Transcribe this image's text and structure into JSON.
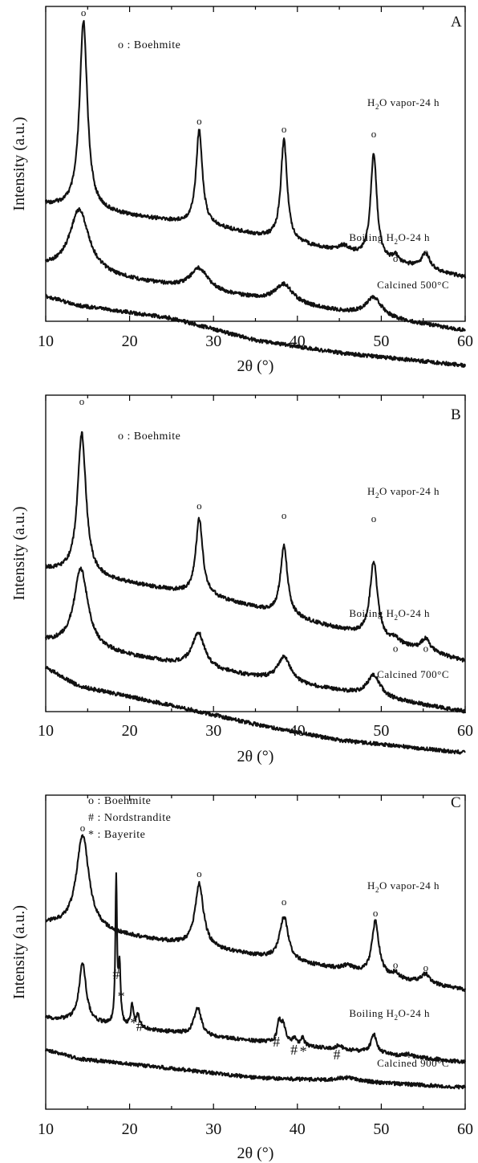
{
  "chart_data": [
    {
      "type": "line",
      "panel": "A",
      "xlabel": "2θ (°)",
      "ylabel": "Intensity (a.u.)",
      "xlim": [
        10,
        60
      ],
      "xticks": [
        10,
        20,
        30,
        40,
        50,
        60
      ],
      "legend": [
        {
          "symbol": "o",
          "text": ": Boehmite"
        }
      ],
      "series": [
        {
          "name": "H2O vapor-24 h",
          "label_main": "H",
          "label_sub": "2",
          "label_rest": "O vapor-24 h",
          "baseline": [
            [
              10,
              0.63
            ],
            [
              30,
              0.7
            ],
            [
              60,
              0.86
            ]
          ],
          "peaks": [
            [
              14.5,
              0.6,
              0.55
            ],
            [
              28.3,
              0.3,
              0.45
            ],
            [
              38.4,
              0.32,
              0.45
            ],
            [
              49.1,
              0.33,
              0.45
            ],
            [
              51.7,
              0.02,
              0.4
            ],
            [
              55.3,
              0.05,
              0.6
            ],
            [
              45.5,
              0.02,
              0.8
            ]
          ],
          "markers": [
            {
              "x": 14.5,
              "y": 0.0,
              "symbol": "o"
            },
            {
              "x": 28.3,
              "y": 0.345,
              "symbol": "o"
            },
            {
              "x": 38.4,
              "y": 0.37,
              "symbol": "o"
            },
            {
              "x": 49.1,
              "y": 0.385,
              "symbol": "o"
            },
            {
              "x": 51.7,
              "y": 0.78,
              "symbol": "o"
            },
            {
              "x": 55.3,
              "y": 0.76,
              "symbol": "o"
            }
          ]
        },
        {
          "name": "Boiling H2O-24 h",
          "label_main": "Boiling H",
          "label_sub": "2",
          "label_rest": "O-24 h",
          "baseline": [
            [
              10,
              0.83
            ],
            [
              30,
              0.91
            ],
            [
              60,
              1.03
            ]
          ],
          "peaks": [
            [
              14.0,
              0.2,
              1.4
            ],
            [
              28.3,
              0.07,
              1.3
            ],
            [
              38.4,
              0.06,
              1.3
            ],
            [
              49.1,
              0.06,
              1.2
            ]
          ],
          "markers": []
        },
        {
          "name": "Calcined 500°C",
          "label_main": "Calcined 500°C",
          "label_sub": "",
          "label_rest": "",
          "baseline": [
            [
              10,
              0.92
            ],
            [
              14,
              0.95
            ],
            [
              25,
              0.99
            ],
            [
              35,
              1.06
            ],
            [
              45,
              1.1
            ],
            [
              60,
              1.14
            ]
          ],
          "peaks": [],
          "markers": []
        }
      ]
    },
    {
      "type": "line",
      "panel": "B",
      "xlabel": "2θ (°)",
      "ylabel": "Intensity (a.u.)",
      "xlim": [
        10,
        60
      ],
      "xticks": [
        10,
        20,
        30,
        40,
        50,
        60
      ],
      "legend": [
        {
          "symbol": "o",
          "text": ": Boehmite"
        }
      ],
      "series": [
        {
          "name": "H2O vapor-24 h",
          "label_main": "H",
          "label_sub": "2",
          "label_rest": "O vapor-24 h",
          "baseline": [
            [
              10,
              0.55
            ],
            [
              30,
              0.64
            ],
            [
              60,
              0.84
            ]
          ],
          "peaks": [
            [
              14.3,
              0.45,
              0.6
            ],
            [
              28.3,
              0.24,
              0.5
            ],
            [
              38.4,
              0.22,
              0.5
            ],
            [
              49.1,
              0.24,
              0.55
            ],
            [
              51.7,
              0.015,
              0.4
            ],
            [
              55.3,
              0.04,
              0.6
            ]
          ],
          "markers": [
            {
              "x": 14.3,
              "y": 0.0,
              "symbol": "o"
            },
            {
              "x": 28.3,
              "y": 0.33,
              "symbol": "o"
            },
            {
              "x": 38.4,
              "y": 0.36,
              "symbol": "o"
            },
            {
              "x": 49.1,
              "y": 0.37,
              "symbol": "o"
            },
            {
              "x": 51.7,
              "y": 0.78,
              "symbol": "o"
            },
            {
              "x": 55.3,
              "y": 0.78,
              "symbol": "o"
            }
          ]
        },
        {
          "name": "Boiling H2O-24 h",
          "label_main": "Boiling H",
          "label_sub": "2",
          "label_rest": "O-24 h",
          "baseline": [
            [
              10,
              0.78
            ],
            [
              30,
              0.87
            ],
            [
              60,
              1.0
            ]
          ],
          "peaks": [
            [
              14.2,
              0.25,
              1.0
            ],
            [
              28.2,
              0.11,
              0.9
            ],
            [
              38.4,
              0.08,
              0.9
            ],
            [
              49.1,
              0.07,
              0.9
            ]
          ],
          "markers": []
        },
        {
          "name": "Calcined 700°C",
          "label_main": "Calcined 700°C",
          "label_sub": "",
          "label_rest": "",
          "baseline": [
            [
              10,
              0.86
            ],
            [
              14,
              0.92
            ],
            [
              25,
              0.98
            ],
            [
              35,
              1.04
            ],
            [
              45,
              1.09
            ],
            [
              60,
              1.13
            ]
          ],
          "peaks": [],
          "markers": []
        }
      ]
    },
    {
      "type": "line",
      "panel": "C",
      "xlabel": "2θ (°)",
      "ylabel": "Intensity (a.u.)",
      "xlim": [
        10,
        60
      ],
      "xticks": [
        10,
        20,
        30,
        40,
        50,
        60
      ],
      "legend": [
        {
          "symbol": "o",
          "text": ": Boehmite"
        },
        {
          "symbol": "#",
          "text": ": Nordstrandite"
        },
        {
          "symbol": "*",
          "text": ": Bayerite"
        }
      ],
      "series": [
        {
          "name": "H2O vapor-24 h",
          "label_main": "H",
          "label_sub": "2",
          "label_rest": "O vapor-24 h",
          "baseline": [
            [
              10,
              0.41
            ],
            [
              30,
              0.49
            ],
            [
              60,
              0.62
            ]
          ],
          "peaks": [
            [
              14.4,
              0.3,
              0.9
            ],
            [
              28.3,
              0.2,
              0.6
            ],
            [
              38.4,
              0.14,
              0.6
            ],
            [
              49.3,
              0.17,
              0.5
            ],
            [
              51.7,
              0.015,
              0.4
            ],
            [
              55.3,
              0.03,
              0.6
            ],
            [
              46.0,
              0.015,
              0.8
            ]
          ],
          "markers": [
            {
              "x": 14.4,
              "y": 0.085,
              "symbol": "o"
            },
            {
              "x": 28.3,
              "y": 0.23,
              "symbol": "o"
            },
            {
              "x": 38.4,
              "y": 0.32,
              "symbol": "o"
            },
            {
              "x": 49.3,
              "y": 0.355,
              "symbol": "o"
            },
            {
              "x": 51.7,
              "y": 0.52,
              "symbol": "o"
            },
            {
              "x": 55.3,
              "y": 0.53,
              "symbol": "o"
            }
          ]
        },
        {
          "name": "Boiling H2O-24 h",
          "label_main": "Boiling H",
          "label_sub": "2",
          "label_rest": "O-24 h",
          "baseline": [
            [
              10,
              0.71
            ],
            [
              30,
              0.77
            ],
            [
              60,
              0.85
            ]
          ],
          "peaks": [
            [
              14.4,
              0.19,
              0.5
            ],
            [
              18.4,
              0.46,
              0.12
            ],
            [
              18.8,
              0.18,
              0.15
            ],
            [
              20.3,
              0.07,
              0.2
            ],
            [
              21.0,
              0.04,
              0.2
            ],
            [
              28.1,
              0.09,
              0.5
            ],
            [
              37.8,
              0.06,
              0.25
            ],
            [
              38.3,
              0.06,
              0.35
            ],
            [
              39.6,
              0.02,
              0.25
            ],
            [
              40.6,
              0.025,
              0.25
            ],
            [
              45.0,
              0.015,
              0.4
            ],
            [
              49.1,
              0.06,
              0.4
            ],
            [
              53.2,
              0.01,
              0.3
            ]
          ],
          "markers": [
            {
              "x": 18.4,
              "y": 0.55,
              "symbol": "#"
            },
            {
              "x": 19.0,
              "y": 0.62,
              "symbol": "*"
            },
            {
              "x": 20.5,
              "y": 0.705,
              "symbol": "*"
            },
            {
              "x": 21.2,
              "y": 0.715,
              "symbol": "#"
            },
            {
              "x": 37.5,
              "y": 0.765,
              "symbol": "#"
            },
            {
              "x": 39.6,
              "y": 0.79,
              "symbol": "#"
            },
            {
              "x": 40.7,
              "y": 0.795,
              "symbol": "*"
            },
            {
              "x": 44.7,
              "y": 0.805,
              "symbol": "#"
            },
            {
              "x": 53.3,
              "y": 0.815,
              "symbol": "*"
            }
          ]
        },
        {
          "name": "Calcined 900°C",
          "label_main": "Calcined 900°C",
          "label_sub": "",
          "label_rest": "",
          "baseline": [
            [
              10,
              0.81
            ],
            [
              14,
              0.84
            ],
            [
              25,
              0.87
            ],
            [
              35,
              0.9
            ],
            [
              45,
              0.91
            ],
            [
              60,
              0.93
            ]
          ],
          "peaks": [
            [
              46.0,
              0.012,
              1.5
            ]
          ],
          "markers": []
        }
      ]
    }
  ]
}
